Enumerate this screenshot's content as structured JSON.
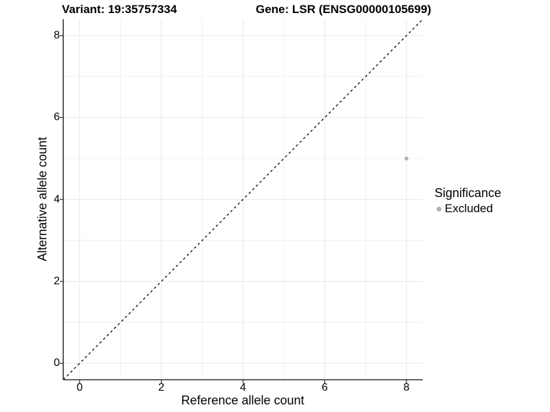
{
  "chart_data": {
    "type": "scatter",
    "title_variant": "Variant: 19:35757334",
    "title_gene": "Gene: LSR (ENSG00000105699)",
    "xlabel": "Reference allele count",
    "ylabel": "Alternative allele count",
    "xlim": [
      -0.4,
      8.4
    ],
    "ylim": [
      -0.4,
      8.4
    ],
    "xticks": [
      0,
      2,
      4,
      6,
      8
    ],
    "yticks": [
      0,
      2,
      4,
      6,
      8
    ],
    "grid": {
      "major": true,
      "minor": true
    },
    "series": [
      {
        "name": "Excluded",
        "color": "#b0b0b0",
        "point_radius": 2.8,
        "points": [
          {
            "x": 8,
            "y": 5
          }
        ]
      }
    ],
    "reference_line": {
      "type": "identity",
      "linestyle": "dashed",
      "color": "#000000"
    },
    "legend": {
      "title": "Significance",
      "position": "right",
      "entries": [
        {
          "label": "Excluded",
          "color": "#b0b0b0"
        }
      ]
    },
    "colors": {
      "axis": "#333333",
      "grid_major": "#e7e7e7",
      "grid_minor": "#f0f0f0",
      "background": "#ffffff",
      "text": "#000000"
    }
  }
}
